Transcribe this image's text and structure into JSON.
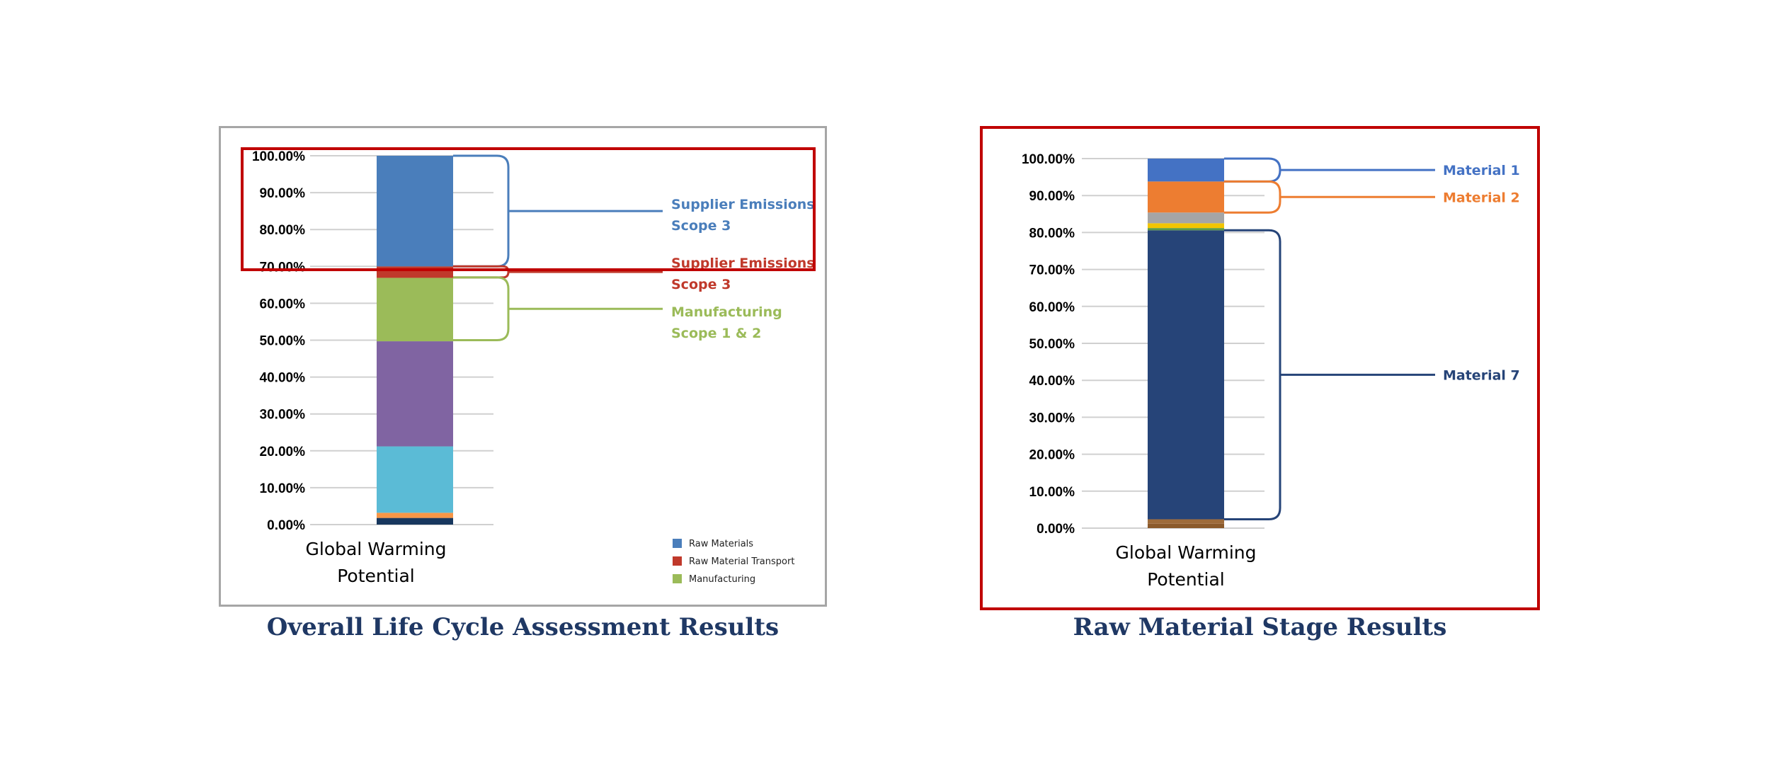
{
  "captions": {
    "left": "Overall Life Cycle Assessment Results",
    "right": "Raw Material Stage Results"
  },
  "chart_data": [
    {
      "type": "bar",
      "stacked": true,
      "categories": [
        "Global Warming Potential"
      ],
      "category_lines": [
        "Global Warming",
        "Potential"
      ],
      "yticks": [
        "0.00%",
        "10.00%",
        "20.00%",
        "30.00%",
        "40.00%",
        "50.00%",
        "60.00%",
        "70.00%",
        "80.00%",
        "90.00%",
        "100.00%"
      ],
      "ylim": [
        0,
        100
      ],
      "grid": true,
      "series": [
        {
          "values": [
            1.8
          ],
          "color": "#17375e"
        },
        {
          "values": [
            1.4
          ],
          "color": "#f79646"
        },
        {
          "values": [
            18.0
          ],
          "color": "#5bbbd6"
        },
        {
          "values": [
            28.5
          ],
          "color": "#8064a2"
        },
        {
          "values": [
            17.2
          ],
          "color": "#9bbb59"
        },
        {
          "name": "Raw Material Transport",
          "values": [
            3.1
          ],
          "color": "#c0392b"
        },
        {
          "name": "Raw Materials",
          "values": [
            30.0
          ],
          "color": "#4a7ebb"
        }
      ],
      "legend": {
        "position": "bottom-right",
        "entries": [
          {
            "label": "Raw Materials",
            "color": "#4a7ebb"
          },
          {
            "label": "Raw Material Transport",
            "color": "#c0392b"
          },
          {
            "label": "Manufacturing",
            "color": "#9bbb59"
          }
        ]
      },
      "annotations": [
        {
          "lines": [
            "Supplier Emissions",
            "Scope 3"
          ],
          "range": [
            70,
            100
          ],
          "color": "#4a7ebb"
        },
        {
          "lines": [
            "Supplier Emissions",
            "Scope 3"
          ],
          "range": [
            67,
            70
          ],
          "color": "#c0392b"
        },
        {
          "lines": [
            "Manufacturing",
            "Scope 1 & 2"
          ],
          "range": [
            50,
            67
          ],
          "color": "#9bbb59"
        }
      ]
    },
    {
      "type": "bar",
      "stacked": true,
      "categories": [
        "Global Warming Potential"
      ],
      "category_lines": [
        "Global Warming",
        "Potential"
      ],
      "yticks": [
        "0.00%",
        "10.00%",
        "20.00%",
        "30.00%",
        "40.00%",
        "50.00%",
        "60.00%",
        "70.00%",
        "80.00%",
        "90.00%",
        "100.00%"
      ],
      "ylim": [
        0,
        100
      ],
      "grid": true,
      "series": [
        {
          "values": [
            1.2
          ],
          "color": "#8b5a2b"
        },
        {
          "values": [
            1.2
          ],
          "color": "#9e6b3a"
        },
        {
          "name": "Material 7",
          "values": [
            78.2
          ],
          "color": "#264478"
        },
        {
          "values": [
            0.6
          ],
          "color": "#5b9b45"
        },
        {
          "values": [
            1.3
          ],
          "color": "#f2c500"
        },
        {
          "values": [
            2.9
          ],
          "color": "#a5a5a5"
        },
        {
          "name": "Material 2",
          "values": [
            8.4
          ],
          "color": "#ed7d31"
        },
        {
          "name": "Material 1",
          "values": [
            6.2
          ],
          "color": "#4472c4"
        }
      ],
      "annotations": [
        {
          "lines": [
            "Material 1"
          ],
          "range": [
            93.8,
            100
          ],
          "color": "#4472c4"
        },
        {
          "lines": [
            "Material 2"
          ],
          "range": [
            85.4,
            93.8
          ],
          "color": "#ed7d31"
        },
        {
          "lines": [
            "Material 7"
          ],
          "range": [
            2.4,
            80.6
          ],
          "color": "#264478"
        }
      ]
    }
  ]
}
